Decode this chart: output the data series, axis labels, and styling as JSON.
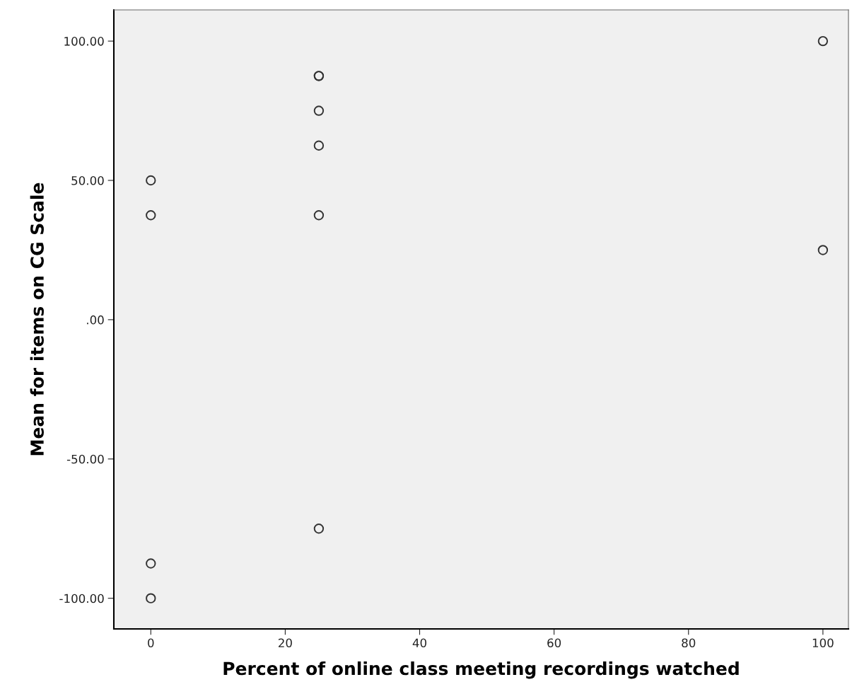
{
  "chart_data": {
    "type": "scatter",
    "xlabel": "Percent of online class meeting recordings watched",
    "ylabel": "Mean for items on CG Scale",
    "x": [
      0,
      0,
      0,
      0,
      25,
      25,
      25,
      25,
      25,
      25,
      100,
      100
    ],
    "values": [
      50,
      37.5,
      -87.5,
      -100,
      87.5,
      87.5,
      75,
      62.5,
      37.5,
      -75,
      100,
      25
    ],
    "color": "#333333",
    "marker": "circle",
    "grid": false,
    "legend": false,
    "xlim": [
      -5.5,
      103.8
    ],
    "xticks": [
      0,
      20,
      40,
      60,
      80,
      100
    ],
    "ylim": [
      -111,
      111.2
    ],
    "yticks": [
      {
        "value": -100,
        "label": "-100.00"
      },
      {
        "value": -50,
        "label": "-50.00"
      },
      {
        "value": 0,
        "label": ".00"
      },
      {
        "value": 50,
        "label": "50.00"
      },
      {
        "value": 100,
        "label": "100.00"
      }
    ]
  }
}
